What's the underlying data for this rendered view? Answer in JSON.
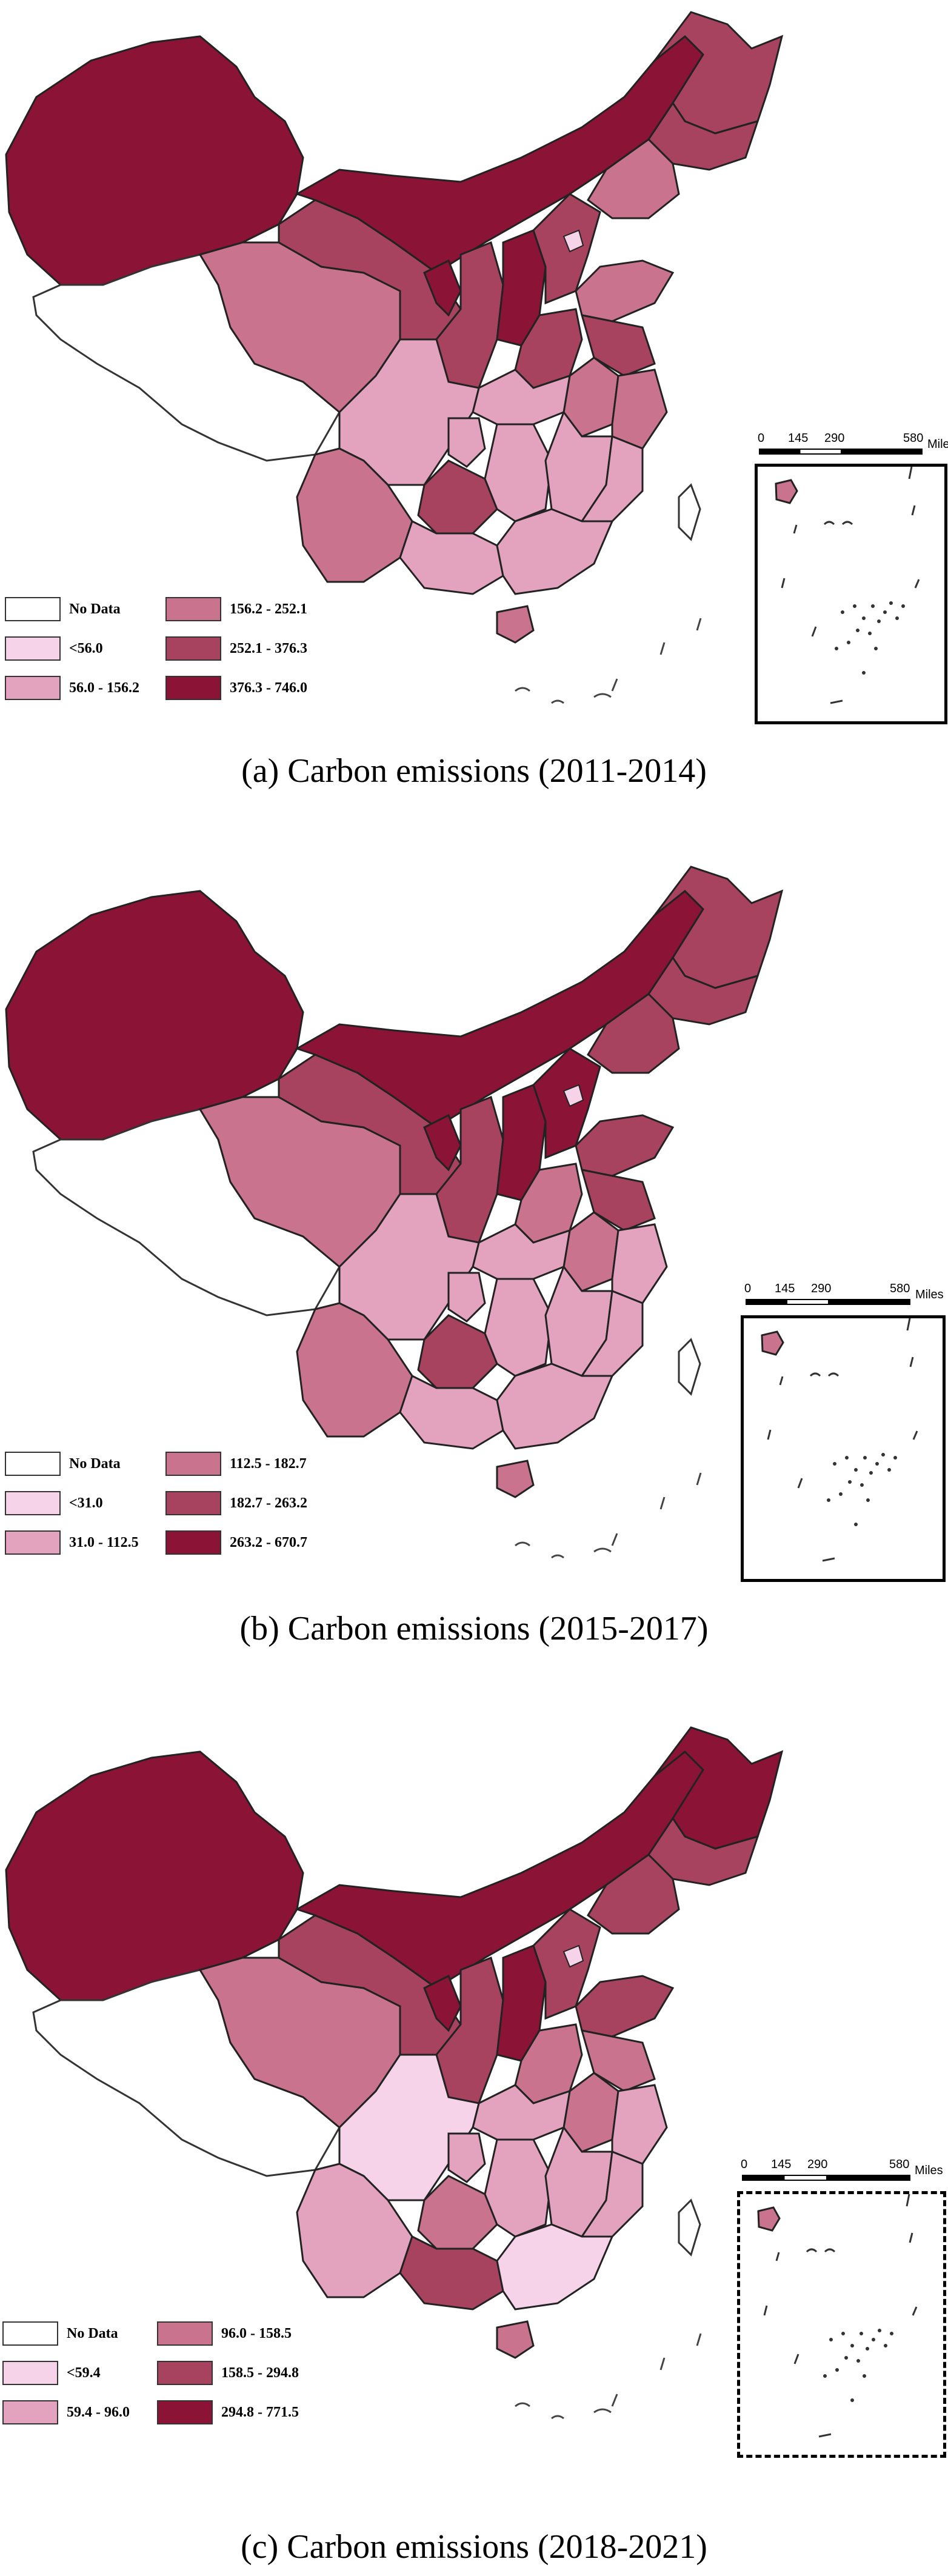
{
  "maps": [
    {
      "caption": "(a) Carbon emissions (2011-2014)",
      "legend": [
        "No Data",
        "<56.0",
        "56.0 - 156.2",
        "156.2 - 252.1",
        "252.1 - 376.3",
        "376.3 - 746.0"
      ],
      "scale": {
        "ticks": [
          "0",
          "145",
          "290",
          "580"
        ],
        "unit": "Miles"
      }
    },
    {
      "caption": "(b) Carbon emissions (2015-2017)",
      "legend": [
        "No Data",
        "<31.0",
        "31.0 - 112.5",
        "112.5 - 182.7",
        "182.7 - 263.2",
        "263.2 - 670.7"
      ],
      "scale": {
        "ticks": [
          "0",
          "145",
          "290",
          "580"
        ],
        "unit": "Miles"
      }
    },
    {
      "caption": "(c) Carbon emissions (2018-2021)",
      "legend": [
        "No Data",
        "<59.4",
        "59.4 - 96.0",
        "96.0 - 158.5",
        "158.5 - 294.8",
        "294.8 - 771.5"
      ],
      "scale": {
        "ticks": [
          "0",
          "145",
          "290",
          "580"
        ],
        "unit": "Miles"
      }
    }
  ],
  "colors": {
    "no_data": "#ffffff",
    "class1": "#f7d3ea",
    "class2": "#e3a2bd",
    "class3": "#c9738f",
    "class4": "#a8435f",
    "class5": "#8b1436"
  }
}
